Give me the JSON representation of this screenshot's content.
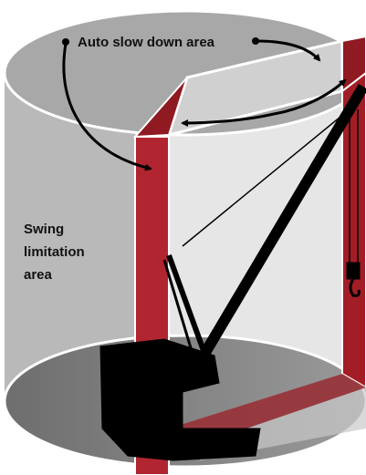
{
  "labels": {
    "auto_slow_down": "Auto slow down area",
    "swing_limitation": [
      "Swing",
      "limitation",
      "area"
    ]
  }
}
